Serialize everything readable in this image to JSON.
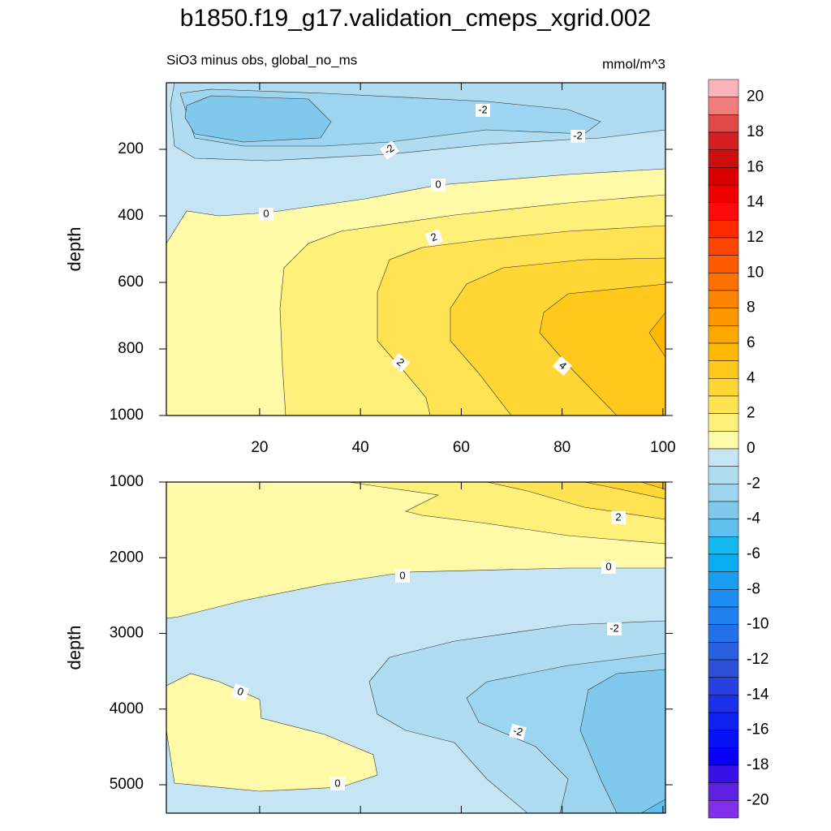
{
  "title": "b1850.f19_g17.validation_cmeps_xgrid.002",
  "chart_data": [
    {
      "type": "contour",
      "subtitle_left": "SiO3 minus obs, global_no_ms",
      "subtitle_right": "mmol/m^3",
      "y_label": "depth",
      "xlim": [
        1.5,
        100.5
      ],
      "xticks": [
        20,
        40,
        60,
        80,
        100
      ],
      "x_tick_labels": true,
      "ylim": [
        0,
        1000
      ],
      "y_reversed": true,
      "yticks": [
        200,
        400,
        600,
        800,
        1000
      ],
      "contour_labels": [
        -2,
        -2,
        -2,
        0,
        0,
        2,
        2,
        4
      ]
    },
    {
      "type": "contour",
      "y_label": "depth",
      "xlim": [
        1.5,
        100.5
      ],
      "xticks": [
        20,
        40,
        60,
        80,
        100
      ],
      "x_tick_labels": false,
      "ylim": [
        1000,
        5375
      ],
      "y_reversed": true,
      "yticks": [
        1000,
        2000,
        3000,
        4000,
        5000
      ],
      "contour_labels": [
        2,
        0,
        0,
        -2,
        0,
        -2,
        0
      ]
    }
  ],
  "colorbar": {
    "labels": [
      20,
      18,
      16,
      14,
      12,
      10,
      8,
      6,
      4,
      2,
      0,
      -2,
      -4,
      -6,
      -8,
      -10,
      -12,
      -14,
      -16,
      -18,
      -20
    ],
    "colors": [
      "#fbb4b9",
      "#f17c7c",
      "#e34848",
      "#d42020",
      "#cc0e0e",
      "#d80000",
      "#ee0000",
      "#ff0a0a",
      "#ff2a00",
      "#ff4600",
      "#ff5a00",
      "#ff7000",
      "#ff8400",
      "#ff9800",
      "#ffa800",
      "#ffb800",
      "#ffc81a",
      "#ffd633",
      "#ffe352",
      "#fff07a",
      "#fffaa8",
      "#c5e5f5",
      "#b0dcf2",
      "#9dd5f0",
      "#80c8ec",
      "#5fc0ee",
      "#16b8f0",
      "#0aaef0",
      "#1a9cf0",
      "#1e8cf0",
      "#2080f0",
      "#2470e8",
      "#2860e0",
      "#2c50d8",
      "#2840e0",
      "#1c30ea",
      "#1020f0",
      "#0810f5",
      "#0800f8",
      "#3a10e8",
      "#6020e0",
      "#8030e8"
    ]
  }
}
